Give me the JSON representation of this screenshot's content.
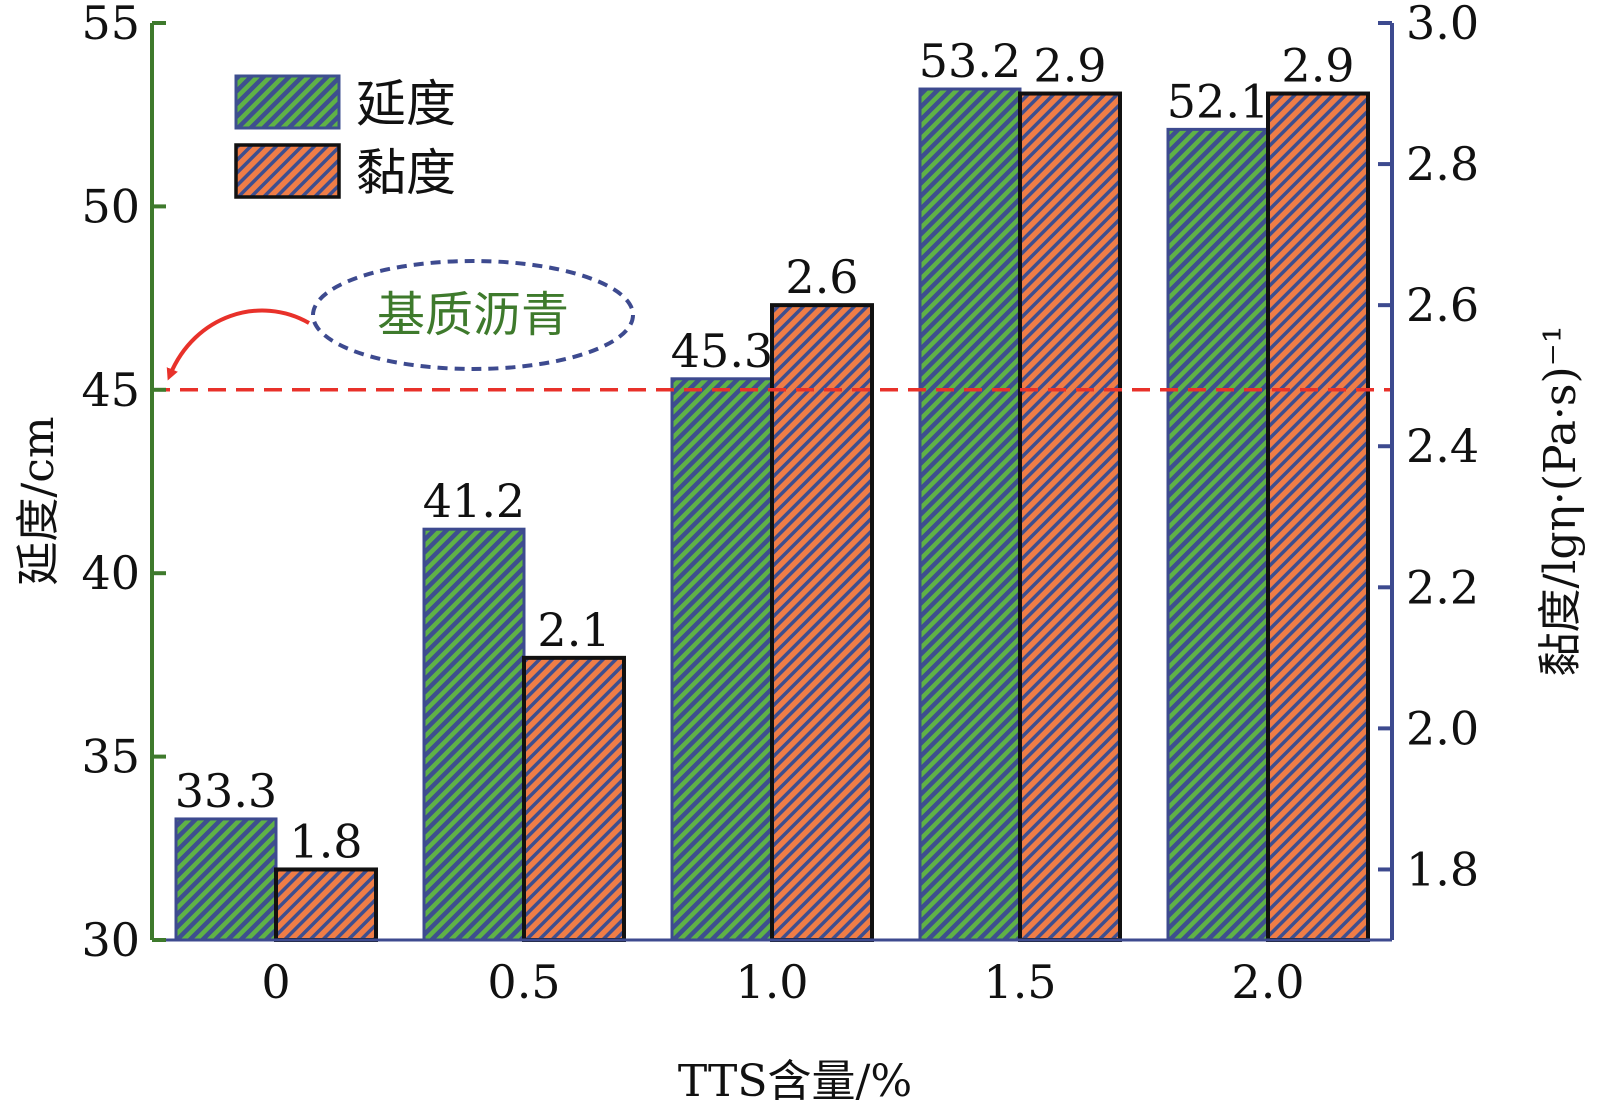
{
  "chart_data": {
    "type": "bar",
    "categories": [
      "0",
      "0.5",
      "1.0",
      "1.5",
      "2.0"
    ],
    "series": [
      {
        "name": "延度",
        "axis": "left",
        "values": [
          33.3,
          41.2,
          45.3,
          53.2,
          52.1
        ],
        "labels": [
          "33.3",
          "41.2",
          "45.3",
          "53.2",
          "52.1"
        ]
      },
      {
        "name": "黏度",
        "axis": "right",
        "values": [
          1.8,
          2.1,
          2.6,
          2.9,
          2.9
        ],
        "labels": [
          "1.8",
          "2.1",
          "2.6",
          "2.9",
          "2.9"
        ]
      }
    ],
    "xlabel": "TTS含量/%",
    "ylabel_left": "延度/cm",
    "ylabel_right": "黏度/lgη·(Pa·s)⁻¹",
    "ylim_left": [
      30,
      55
    ],
    "ylim_right": [
      1.7,
      3.0
    ],
    "yticks_left": [
      "30",
      "35",
      "40",
      "45",
      "50",
      "55"
    ],
    "yticks_right": [
      "1.8",
      "2.0",
      "2.2",
      "2.4",
      "2.6",
      "2.8",
      "3.0"
    ],
    "reference_line": {
      "y": 45,
      "axis": "left",
      "label": "基质沥青",
      "color": "#e8312a"
    },
    "legend_position": "top-left",
    "colors": {
      "left_axis": "#3e7a2c",
      "right_axis": "#3d4a8f",
      "series1_base": "#3e4f8f",
      "series1_hatch": "#5fb246",
      "series2_base": "#ef7d47",
      "series2_hatch": "#3e4f8f"
    }
  }
}
